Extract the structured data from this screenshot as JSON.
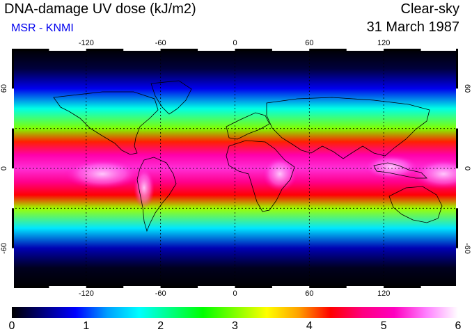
{
  "header": {
    "title": "DNA-damage UV dose (kJ/m2)",
    "subtitle": "MSR - KNMI",
    "sky_condition": "Clear-sky",
    "date": "31 March 1987"
  },
  "map": {
    "projection": "equirectangular",
    "lon_ticks": [
      "-120",
      "-60",
      "0",
      "60",
      "120"
    ],
    "lat_ticks": [
      "60",
      "0",
      "-60"
    ],
    "lon_tick_values": [
      -120,
      -60,
      0,
      60,
      120
    ],
    "lat_tick_values": [
      60,
      0,
      -60
    ],
    "lon_range": [
      -180,
      180
    ],
    "lat_range": [
      -90,
      90
    ],
    "gridlines": true
  },
  "colorbar": {
    "labels": [
      "0",
      "1",
      "2",
      "3",
      "4",
      "5",
      "6"
    ],
    "min": 0,
    "max": 6,
    "colors": [
      "#000000",
      "#000080",
      "#0000ff",
      "#00a0ff",
      "#00ffff",
      "#00ff80",
      "#00ff00",
      "#80ff00",
      "#ffff00",
      "#ffa000",
      "#ff0000",
      "#ff0080",
      "#ff00c0",
      "#ff80ff",
      "#ffffff"
    ]
  },
  "chart_data": {
    "type": "heatmap",
    "title": "DNA-damage UV dose (kJ/m2)",
    "variable": "DNA-damage UV dose",
    "units": "kJ/m2",
    "condition": "Clear-sky",
    "date": "31 March 1987",
    "source": "MSR - KNMI",
    "value_range": [
      0,
      6
    ],
    "latitude_profile": [
      {
        "lat": 90,
        "value": 0.0
      },
      {
        "lat": 75,
        "value": 0.2
      },
      {
        "lat": 60,
        "value": 0.8
      },
      {
        "lat": 45,
        "value": 1.8
      },
      {
        "lat": 30,
        "value": 3.0
      },
      {
        "lat": 20,
        "value": 4.2
      },
      {
        "lat": 10,
        "value": 5.0
      },
      {
        "lat": 0,
        "value": 5.3
      },
      {
        "lat": -10,
        "value": 4.8
      },
      {
        "lat": -20,
        "value": 4.3
      },
      {
        "lat": -30,
        "value": 3.1
      },
      {
        "lat": -45,
        "value": 1.6
      },
      {
        "lat": -60,
        "value": 0.6
      },
      {
        "lat": -75,
        "value": 0.1
      },
      {
        "lat": -90,
        "value": 0.0
      }
    ]
  }
}
